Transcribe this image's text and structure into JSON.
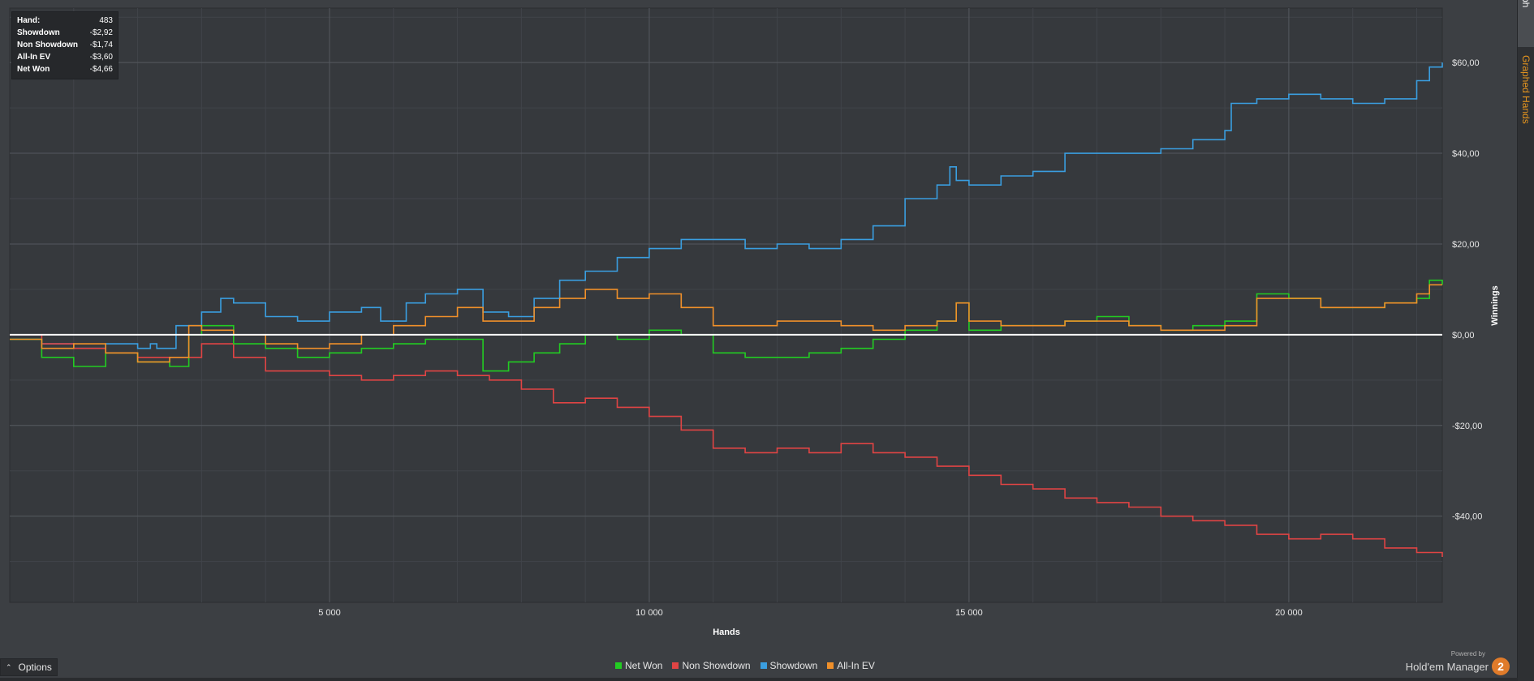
{
  "tooltip": {
    "rows": [
      {
        "label": "Hand:",
        "value": "483"
      },
      {
        "label": "Showdown",
        "value": "-$2,92"
      },
      {
        "label": "Non Showdown",
        "value": "-$1,74"
      },
      {
        "label": "All-In EV",
        "value": "-$3,60"
      },
      {
        "label": "Net Won",
        "value": "-$4,66"
      }
    ]
  },
  "side_tabs": {
    "graph": "Graph",
    "graphed_hands": "Graphed Hands"
  },
  "options": {
    "label": "Options",
    "icon": "chevron-up-icon"
  },
  "legend": [
    {
      "label": "Net Won",
      "color": "#22cc22"
    },
    {
      "label": "Non Showdown",
      "color": "#e04444"
    },
    {
      "label": "Showdown",
      "color": "#3a9ee0"
    },
    {
      "label": "All-In EV",
      "color": "#f0902a"
    }
  ],
  "brand": {
    "powered": "Powered by",
    "name": "Hold'em Manager",
    "badge": "2"
  },
  "chart_data": {
    "type": "line",
    "title": "",
    "xlabel": "Hands",
    "ylabel": "Winnings",
    "xlim": [
      0,
      22400
    ],
    "ylim": [
      -59,
      72
    ],
    "x_ticks": [
      5000,
      10000,
      15000,
      20000
    ],
    "x_tick_labels": [
      "5 000",
      "10 000",
      "15 000",
      "20 000"
    ],
    "y_ticks": [
      60,
      40,
      20,
      0,
      -20,
      -40
    ],
    "y_tick_labels": [
      "$60,00",
      "$40,00",
      "$20,00",
      "$0,00",
      "-$20,00",
      "-$40,00"
    ],
    "grid": true,
    "series": [
      {
        "name": "Showdown",
        "color": "#3a9ee0",
        "x": [
          0,
          500,
          1000,
          1500,
          2000,
          2200,
          2300,
          2600,
          3000,
          3300,
          3500,
          4000,
          4500,
          5000,
          5500,
          5800,
          6200,
          6500,
          7000,
          7400,
          7800,
          8200,
          8600,
          9000,
          9500,
          10000,
          10500,
          11000,
          11500,
          12000,
          12500,
          13000,
          13500,
          14000,
          14500,
          14700,
          14800,
          15000,
          15500,
          16000,
          16500,
          17000,
          17500,
          18000,
          18500,
          19000,
          19100,
          19500,
          20000,
          20500,
          21000,
          21500,
          22000,
          22200,
          22400
        ],
        "y": [
          -1,
          -2,
          -3,
          -2,
          -3,
          -2,
          -3,
          2,
          5,
          8,
          7,
          4,
          3,
          5,
          6,
          3,
          7,
          9,
          10,
          5,
          4,
          8,
          12,
          14,
          17,
          19,
          21,
          21,
          19,
          20,
          19,
          21,
          24,
          30,
          33,
          37,
          34,
          33,
          35,
          36,
          40,
          40,
          40,
          41,
          43,
          45,
          51,
          52,
          53,
          52,
          51,
          52,
          56,
          59,
          60
        ]
      },
      {
        "name": "Non Showdown",
        "color": "#e04444",
        "x": [
          0,
          500,
          1000,
          1500,
          2000,
          2500,
          3000,
          3500,
          4000,
          4500,
          5000,
          5500,
          6000,
          6500,
          7000,
          7500,
          8000,
          8500,
          9000,
          9500,
          10000,
          10500,
          11000,
          11500,
          12000,
          12500,
          13000,
          13500,
          14000,
          14500,
          15000,
          15500,
          16000,
          16500,
          17000,
          17500,
          18000,
          18500,
          19000,
          19500,
          20000,
          20500,
          21000,
          21500,
          22000,
          22400
        ],
        "y": [
          0,
          -2,
          -3,
          -4,
          -5,
          -5,
          -2,
          -5,
          -8,
          -8,
          -9,
          -10,
          -9,
          -8,
          -9,
          -10,
          -12,
          -15,
          -14,
          -16,
          -18,
          -21,
          -25,
          -26,
          -25,
          -26,
          -24,
          -26,
          -27,
          -29,
          -31,
          -33,
          -34,
          -36,
          -37,
          -38,
          -40,
          -41,
          -42,
          -44,
          -45,
          -44,
          -45,
          -47,
          -48,
          -49
        ]
      },
      {
        "name": "Net Won",
        "color": "#22cc22",
        "x": [
          0,
          500,
          1000,
          1500,
          2000,
          2500,
          2800,
          3000,
          3500,
          4000,
          4500,
          5000,
          5500,
          6000,
          6500,
          7000,
          7400,
          7800,
          8200,
          8600,
          9000,
          9500,
          10000,
          10500,
          11000,
          11500,
          12000,
          12500,
          13000,
          13500,
          14000,
          14500,
          14800,
          15000,
          15500,
          16000,
          16500,
          17000,
          17500,
          18000,
          18500,
          19000,
          19500,
          20000,
          20500,
          21000,
          21500,
          22000,
          22200,
          22400
        ],
        "y": [
          -1,
          -5,
          -7,
          -4,
          -6,
          -7,
          0,
          2,
          -2,
          -3,
          -5,
          -4,
          -3,
          -2,
          -1,
          -1,
          -8,
          -6,
          -4,
          -2,
          0,
          -1,
          1,
          0,
          -4,
          -5,
          -5,
          -4,
          -3,
          -1,
          1,
          3,
          7,
          1,
          2,
          2,
          3,
          4,
          2,
          1,
          2,
          3,
          9,
          8,
          6,
          6,
          7,
          8,
          12,
          11
        ]
      },
      {
        "name": "All-In EV",
        "color": "#f0902a",
        "x": [
          0,
          500,
          1000,
          1500,
          2000,
          2500,
          2800,
          3000,
          3500,
          4000,
          4500,
          5000,
          5500,
          6000,
          6500,
          7000,
          7400,
          7800,
          8200,
          8600,
          9000,
          9500,
          10000,
          10500,
          11000,
          11500,
          12000,
          12500,
          13000,
          13500,
          14000,
          14500,
          14800,
          15000,
          15500,
          16000,
          16500,
          17000,
          17500,
          18000,
          18500,
          19000,
          19500,
          20000,
          20500,
          21000,
          21500,
          22000,
          22200,
          22400
        ],
        "y": [
          -1,
          -3,
          -2,
          -4,
          -6,
          -5,
          2,
          1,
          0,
          -2,
          -3,
          -2,
          0,
          2,
          4,
          6,
          3,
          3,
          6,
          8,
          10,
          8,
          9,
          6,
          2,
          2,
          3,
          3,
          2,
          1,
          2,
          3,
          7,
          3,
          2,
          2,
          3,
          3,
          2,
          1,
          1,
          2,
          8,
          8,
          6,
          6,
          7,
          9,
          11,
          11
        ]
      }
    ]
  }
}
